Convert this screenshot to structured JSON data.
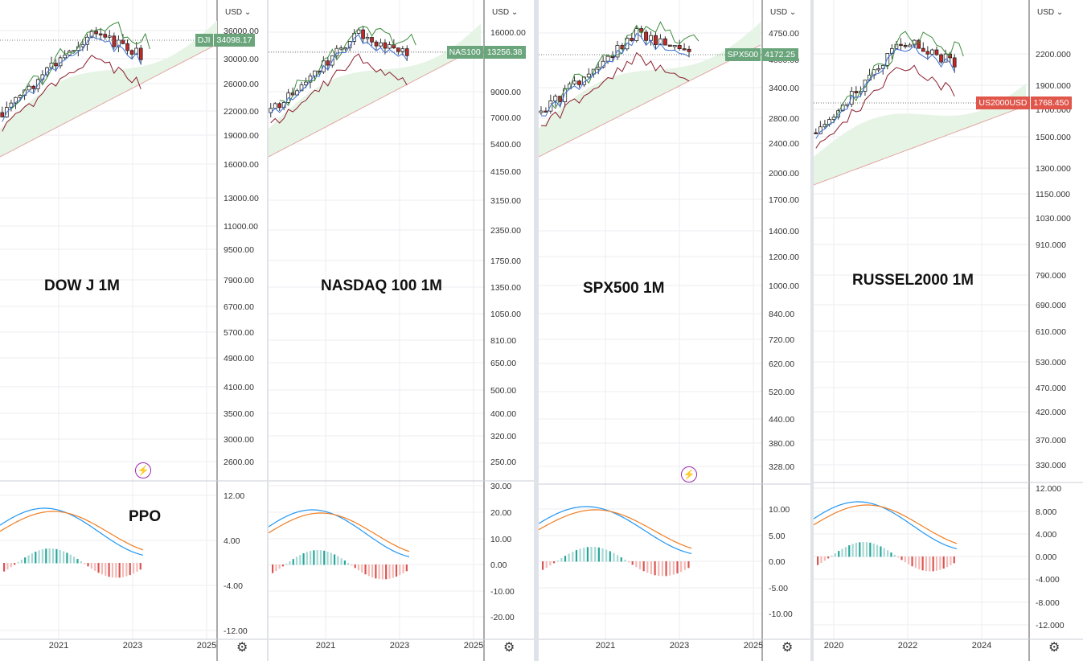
{
  "chart_data": [
    {
      "type": "candlestick",
      "title": "DOW J 1M",
      "symbol": "DJI",
      "currency": "USD",
      "scale": "log",
      "last_value": "34098.17",
      "price_ticks": [
        "36000.00",
        "30000.00",
        "26000.00",
        "22000.00",
        "19000.00",
        "16000.00",
        "13000.00",
        "11000.00",
        "9500.00",
        "7900.00",
        "6700.00",
        "5700.00",
        "4900.00",
        "4100.00",
        "3500.00",
        "3000.00",
        "2600.00"
      ],
      "x_ticks": [
        "2021",
        "2023",
        "2025"
      ],
      "indicator": {
        "name": "PPO",
        "ticks": [
          "12.00",
          "4.00",
          "-4.00",
          "-12.00"
        ]
      },
      "tag_color": "#6aa57c"
    },
    {
      "type": "candlestick",
      "title": "NASDAQ 100 1M",
      "symbol": "NAS100",
      "currency": "USD",
      "scale": "log",
      "last_value": "13256.38",
      "price_ticks": [
        "16000.00",
        "12000.00",
        "9000.00",
        "7000.00",
        "5400.00",
        "4150.00",
        "3150.00",
        "2350.00",
        "1750.00",
        "1350.00",
        "1050.00",
        "810.00",
        "650.00",
        "500.00",
        "400.00",
        "320.00",
        "250.00"
      ],
      "x_ticks": [
        "2021",
        "2023",
        "2025"
      ],
      "indicator": {
        "name": "PPO",
        "ticks": [
          "30.00",
          "20.00",
          "10.00",
          "0.00",
          "-10.00",
          "-20.00"
        ]
      },
      "tag_color": "#6aa57c"
    },
    {
      "type": "candlestick",
      "title": "SPX500 1M",
      "symbol": "SPX500",
      "currency": "USD",
      "scale": "log",
      "last_value": "4172.25",
      "price_ticks": [
        "4750.00",
        "4000.00",
        "3400.00",
        "2800.00",
        "2400.00",
        "2000.00",
        "1700.00",
        "1400.00",
        "1200.00",
        "1000.00",
        "840.00",
        "720.00",
        "620.00",
        "520.00",
        "440.00",
        "380.00",
        "328.00"
      ],
      "x_ticks": [
        "2021",
        "2023",
        "2025"
      ],
      "indicator": {
        "name": "PPO",
        "ticks": [
          "10.00",
          "5.00",
          "0.00",
          "-5.00",
          "-10.00"
        ]
      },
      "tag_color": "#6aa57c"
    },
    {
      "type": "candlestick",
      "title": "RUSSEL2000 1M",
      "symbol": "US2000USD",
      "currency": "USD",
      "scale": "log",
      "last_value": "1768.450",
      "price_ticks": [
        "2200.000",
        "1900.000",
        "1700.000",
        "1500.000",
        "1300.000",
        "1150.000",
        "1030.000",
        "910.000",
        "790.000",
        "690.000",
        "610.000",
        "530.000",
        "470.000",
        "420.000",
        "370.000",
        "330.000"
      ],
      "x_ticks": [
        "2020",
        "2022",
        "2024"
      ],
      "indicator": {
        "name": "PPO",
        "ticks": [
          "12.000",
          "8.000",
          "4.000",
          "0.000",
          "-4.000",
          "-8.000",
          "-12.000"
        ]
      },
      "tag_color": "#e0564b"
    }
  ]
}
